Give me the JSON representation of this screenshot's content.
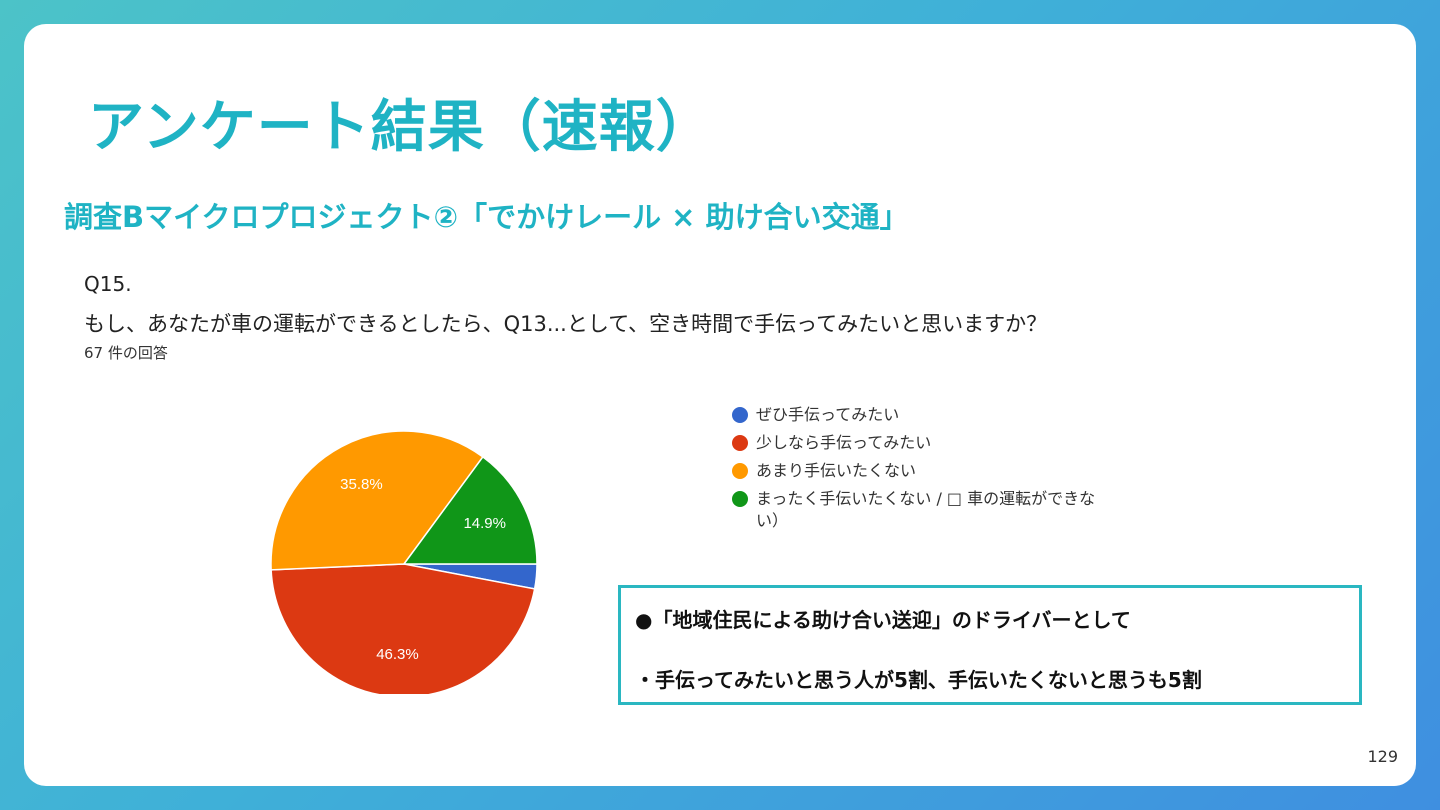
{
  "slide": {
    "title": "アンケート結果（速報）",
    "subtitle": "調査Bマイクロプロジェクト②「でかけレール × 助け合い交通」",
    "question_number": "Q15.",
    "question_text": "もし、あなたが車の運転ができるとしたら、Q13...として、空き時間で手伝ってみたいと思いますか？",
    "response_count": "67 件の回答",
    "page_number": "129"
  },
  "callout": {
    "line1": "●「地域住民による助け合い送迎」のドライバーとして",
    "line2": "・手伝ってみたいと思う人が5割、手伝いたくないと思うも5割"
  },
  "chart_data": {
    "type": "pie",
    "legend_position": "right",
    "categories": [
      "ぜひ手伝ってみたい",
      "少しなら手伝ってみたい",
      "あまり手伝いたくない",
      "まったく手伝いたくない / □ 車の運転ができない）"
    ],
    "values": [
      3.0,
      46.3,
      35.8,
      14.9
    ],
    "labels": [
      "",
      "46.3%",
      "35.8%",
      "14.9%"
    ],
    "colors": [
      "#3366cc",
      "#dc3912",
      "#ff9900",
      "#109618"
    ]
  }
}
